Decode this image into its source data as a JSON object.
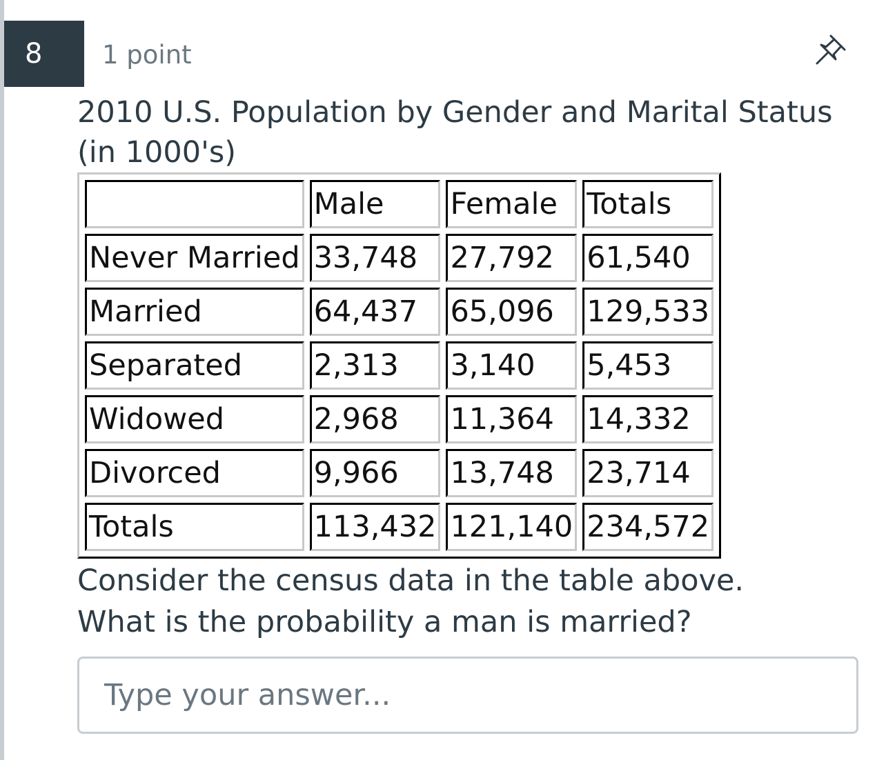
{
  "question": {
    "number": "8",
    "points": "1 point",
    "title": "2010 U.S. Population by Gender and Marital Status (in 1000's)",
    "table": {
      "header": [
        "",
        "Male",
        "Female",
        "Totals"
      ],
      "rows": [
        [
          "Never Married",
          "33,748",
          "27,792",
          "61,540"
        ],
        [
          "Married",
          "64,437",
          "65,096",
          "129,533"
        ],
        [
          "Separated",
          "2,313",
          "3,140",
          "5,453"
        ],
        [
          "Widowed",
          "2,968",
          "11,364",
          "14,332"
        ],
        [
          "Divorced",
          "9,966",
          "13,748",
          "23,714"
        ],
        [
          "Totals",
          "113,432",
          "121,140",
          "234,572"
        ]
      ]
    },
    "prompt_lines": [
      "Consider the census data in the table above.",
      "What is the probability a man is married?"
    ],
    "answer": {
      "value": "",
      "placeholder": "Type your answer..."
    }
  },
  "icons": {
    "pin": "pushpin-icon"
  },
  "colors": {
    "number_badge_bg": "#2d3b45",
    "text": "#2d3b45",
    "muted_text": "#6b7780",
    "input_border": "#c7cdd1"
  }
}
